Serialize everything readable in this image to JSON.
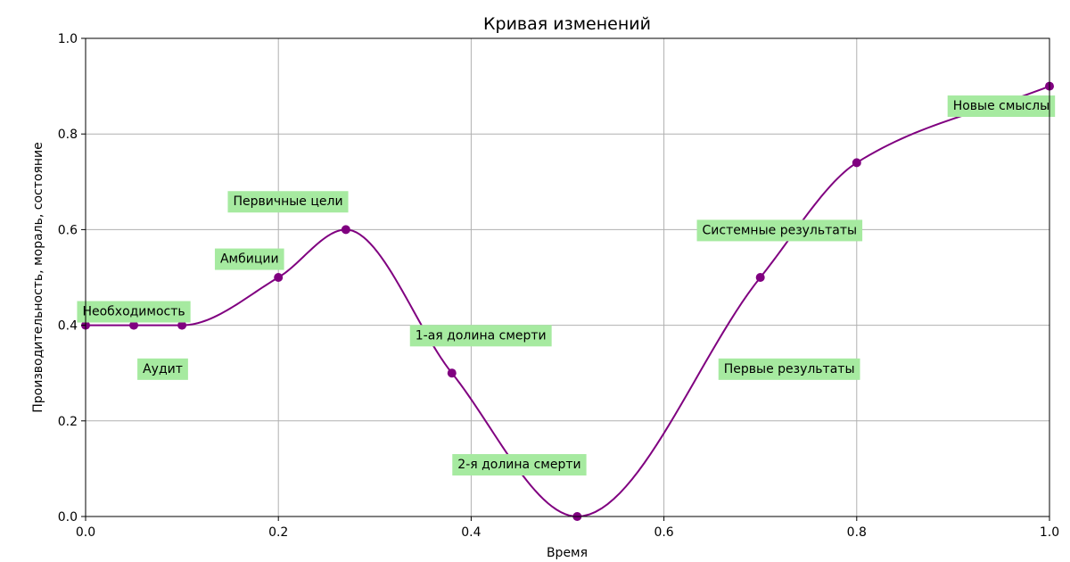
{
  "chart_data": {
    "type": "line",
    "title": "Кривая изменений",
    "xlabel": "Время",
    "ylabel": "Производительность, мораль, состояние",
    "xlim": [
      0,
      1
    ],
    "ylim": [
      0,
      1
    ],
    "xticks": [
      "0.0",
      "0.2",
      "0.4",
      "0.6",
      "0.8",
      "1.0"
    ],
    "yticks": [
      "0.0",
      "0.2",
      "0.4",
      "0.6",
      "0.8",
      "1.0"
    ],
    "grid": true,
    "line_color": "#800080",
    "label_box_color": "#a6eaa0",
    "points": [
      {
        "x": 0.0,
        "y": 0.4
      },
      {
        "x": 0.05,
        "y": 0.4
      },
      {
        "x": 0.1,
        "y": 0.4
      },
      {
        "x": 0.2,
        "y": 0.5
      },
      {
        "x": 0.27,
        "y": 0.6
      },
      {
        "x": 0.38,
        "y": 0.3
      },
      {
        "x": 0.51,
        "y": 0.0
      },
      {
        "x": 0.7,
        "y": 0.5
      },
      {
        "x": 0.8,
        "y": 0.74
      },
      {
        "x": 1.0,
        "y": 0.9
      }
    ],
    "annotations": [
      {
        "text": "Необходимость",
        "x": 0.05,
        "y": 0.43
      },
      {
        "text": "Аудит",
        "x": 0.08,
        "y": 0.31
      },
      {
        "text": "Амбиции",
        "x": 0.17,
        "y": 0.54
      },
      {
        "text": "Первичные цели",
        "x": 0.21,
        "y": 0.66
      },
      {
        "text": "1-ая долина смерти",
        "x": 0.41,
        "y": 0.38
      },
      {
        "text": "2-я долина смерти",
        "x": 0.45,
        "y": 0.11
      },
      {
        "text": "Системные результаты",
        "x": 0.72,
        "y": 0.6
      },
      {
        "text": "Первые результаты",
        "x": 0.73,
        "y": 0.31
      },
      {
        "text": "Новые смыслы",
        "x": 0.95,
        "y": 0.86
      }
    ]
  }
}
